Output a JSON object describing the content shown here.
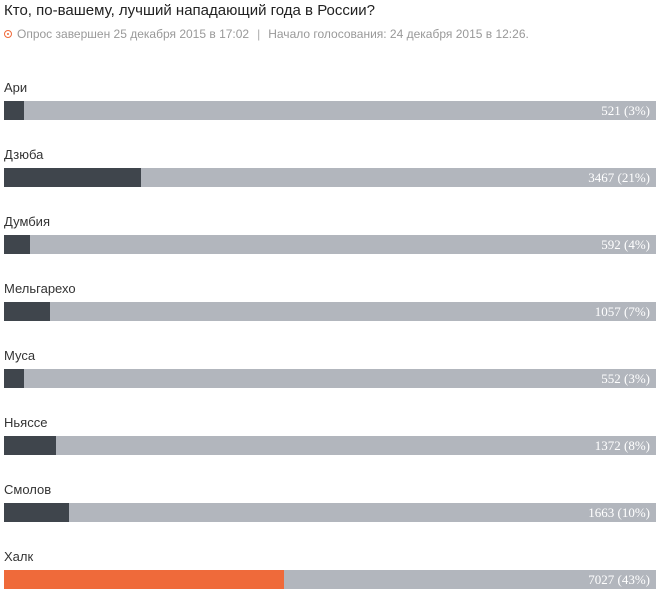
{
  "poll": {
    "title": "Кто, по-вашему, лучший нападающий года в России?",
    "status_icon": "status-dot-icon",
    "closed_text": "Опрос завершен 25 декабря 2015 в 17:02",
    "separator": "|",
    "started_text": "Начало голосования: 24 декабря 2015 в 12:26."
  },
  "colors": {
    "track": "#b2b6bd",
    "fill": "#3f454c",
    "winner": "#ef6a3a"
  },
  "chart_data": {
    "type": "bar",
    "categories": [
      "Ари",
      "Дзюба",
      "Думбия",
      "Мельгарехо",
      "Муса",
      "Ньяссе",
      "Смолов",
      "Халк"
    ],
    "values": [
      521,
      3467,
      592,
      1057,
      552,
      1372,
      1663,
      7027
    ],
    "percents": [
      3,
      21,
      4,
      7,
      3,
      8,
      10,
      43
    ],
    "value_labels": [
      "521 (3%)",
      "3467 (21%)",
      "592 (4%)",
      "1057 (7%)",
      "552 (3%)",
      "1372 (8%)",
      "1663 (10%)",
      "7027 (43%)"
    ],
    "highlighted_index": 7
  }
}
